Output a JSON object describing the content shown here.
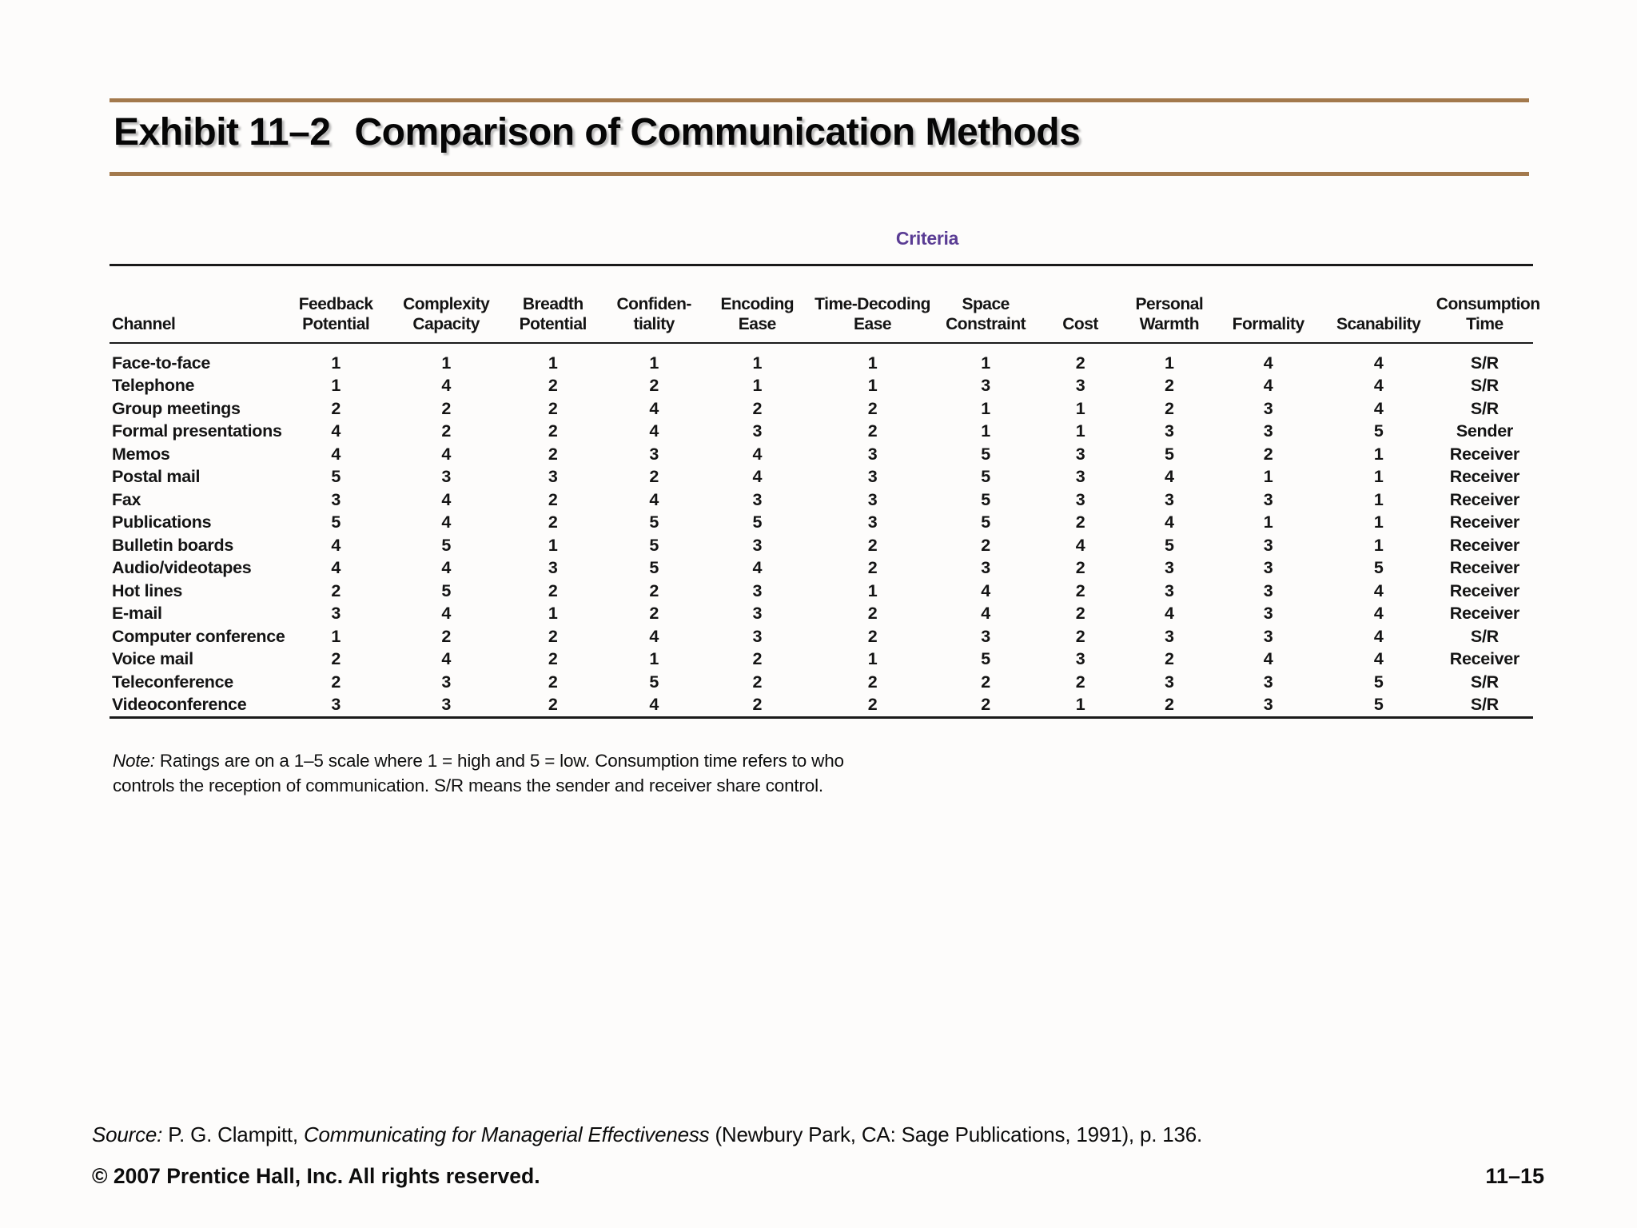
{
  "header": {
    "exhibit_label": "Exhibit 11–2",
    "title": "Comparison of Communication Methods"
  },
  "colors": {
    "title_rule_brown": "#a3794c",
    "criteria_purple": "#5a3c94",
    "table_ink": "#1a1a1a",
    "background": "#fdfcfb"
  },
  "chart_data": {
    "type": "table",
    "title": "Comparison of Communication Methods",
    "group_header": "Criteria",
    "rating_scale": "1–5 (1 = high, 5 = low)",
    "headers": [
      [
        "Channel"
      ],
      [
        "Feedback",
        "Potential"
      ],
      [
        "Complexity",
        "Capacity"
      ],
      [
        "Breadth",
        "Potential"
      ],
      [
        "Confiden-",
        "tiality"
      ],
      [
        "Encoding",
        "Ease"
      ],
      [
        "Time-Decoding",
        "Ease"
      ],
      [
        "Space",
        "Constraint"
      ],
      [
        "Cost"
      ],
      [
        "Personal",
        "Warmth"
      ],
      [
        "Formality"
      ],
      [
        "Scanability"
      ],
      [
        "Consumption",
        "Time"
      ]
    ],
    "rows": [
      {
        "channel": "Face-to-face",
        "values": [
          "1",
          "1",
          "1",
          "1",
          "1",
          "1",
          "1",
          "2",
          "1",
          "4",
          "4",
          "S/R"
        ]
      },
      {
        "channel": "Telephone",
        "values": [
          "1",
          "4",
          "2",
          "2",
          "1",
          "1",
          "3",
          "3",
          "2",
          "4",
          "4",
          "S/R"
        ]
      },
      {
        "channel": "Group meetings",
        "values": [
          "2",
          "2",
          "2",
          "4",
          "2",
          "2",
          "1",
          "1",
          "2",
          "3",
          "4",
          "S/R"
        ]
      },
      {
        "channel": "Formal presentations",
        "values": [
          "4",
          "2",
          "2",
          "4",
          "3",
          "2",
          "1",
          "1",
          "3",
          "3",
          "5",
          "Sender"
        ]
      },
      {
        "channel": "Memos",
        "values": [
          "4",
          "4",
          "2",
          "3",
          "4",
          "3",
          "5",
          "3",
          "5",
          "2",
          "1",
          "Receiver"
        ]
      },
      {
        "channel": "Postal mail",
        "values": [
          "5",
          "3",
          "3",
          "2",
          "4",
          "3",
          "5",
          "3",
          "4",
          "1",
          "1",
          "Receiver"
        ]
      },
      {
        "channel": "Fax",
        "values": [
          "3",
          "4",
          "2",
          "4",
          "3",
          "3",
          "5",
          "3",
          "3",
          "3",
          "1",
          "Receiver"
        ]
      },
      {
        "channel": "Publications",
        "values": [
          "5",
          "4",
          "2",
          "5",
          "5",
          "3",
          "5",
          "2",
          "4",
          "1",
          "1",
          "Receiver"
        ]
      },
      {
        "channel": "Bulletin boards",
        "values": [
          "4",
          "5",
          "1",
          "5",
          "3",
          "2",
          "2",
          "4",
          "5",
          "3",
          "1",
          "Receiver"
        ]
      },
      {
        "channel": "Audio/videotapes",
        "values": [
          "4",
          "4",
          "3",
          "5",
          "4",
          "2",
          "3",
          "2",
          "3",
          "3",
          "5",
          "Receiver"
        ]
      },
      {
        "channel": "Hot lines",
        "values": [
          "2",
          "5",
          "2",
          "2",
          "3",
          "1",
          "4",
          "2",
          "3",
          "3",
          "4",
          "Receiver"
        ]
      },
      {
        "channel": "E-mail",
        "values": [
          "3",
          "4",
          "1",
          "2",
          "3",
          "2",
          "4",
          "2",
          "4",
          "3",
          "4",
          "Receiver"
        ]
      },
      {
        "channel": "Computer conference",
        "values": [
          "1",
          "2",
          "2",
          "4",
          "3",
          "2",
          "3",
          "2",
          "3",
          "3",
          "4",
          "S/R"
        ]
      },
      {
        "channel": "Voice mail",
        "values": [
          "2",
          "4",
          "2",
          "1",
          "2",
          "1",
          "5",
          "3",
          "2",
          "4",
          "4",
          "Receiver"
        ]
      },
      {
        "channel": "Teleconference",
        "values": [
          "2",
          "3",
          "2",
          "5",
          "2",
          "2",
          "2",
          "2",
          "3",
          "3",
          "5",
          "S/R"
        ]
      },
      {
        "channel": "Videoconference",
        "values": [
          "3",
          "3",
          "2",
          "4",
          "2",
          "2",
          "2",
          "1",
          "2",
          "3",
          "5",
          "S/R"
        ]
      }
    ]
  },
  "note": {
    "prefix": "Note:",
    "line1": " Ratings are on a 1–5 scale where 1 = high and 5 = low. Consumption time refers to who",
    "line2": "controls the reception of communication. S/R means the sender and receiver share control."
  },
  "footer": {
    "source_prefix": "Source:",
    "source_seg1": " P. G. Clampitt, ",
    "source_title": "Communicating for Managerial Effectiveness",
    "source_seg2": " (Newbury Park, CA: Sage Publications, 1991), p. 136.",
    "copyright": "© 2007 Prentice Hall, Inc. All rights reserved.",
    "page_number": "11–15"
  }
}
